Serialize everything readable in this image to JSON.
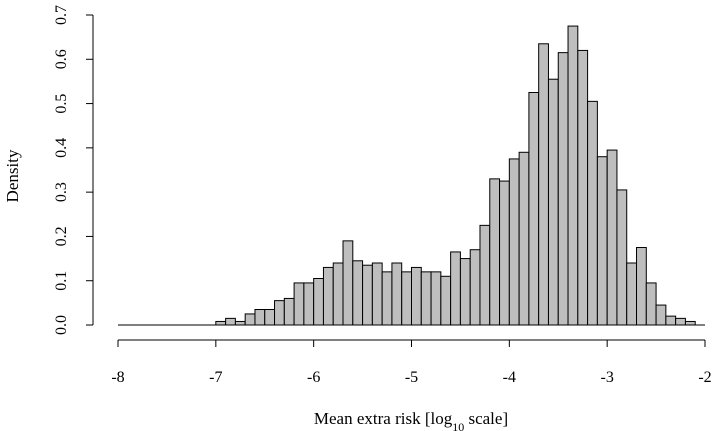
{
  "chart_data": {
    "type": "bar",
    "title": "",
    "ylabel": "Density",
    "xlabel_main": "Mean extra risk [log",
    "xlabel_sub": "10",
    "xlabel_tail": " scale]",
    "xlim": [
      -8,
      -2
    ],
    "ylim": [
      0,
      0.7
    ],
    "x_ticks": [
      -8,
      -7,
      -6,
      -5,
      -4,
      -3,
      -2
    ],
    "x_tick_labels": [
      "-8",
      "-7",
      "-6",
      "-5",
      "-4",
      "-3",
      "-2"
    ],
    "y_ticks": [
      0.0,
      0.1,
      0.2,
      0.3,
      0.4,
      0.5,
      0.6,
      0.7
    ],
    "y_tick_labels": [
      "0.0",
      "0.1",
      "0.2",
      "0.3",
      "0.4",
      "0.5",
      "0.6",
      "0.7"
    ],
    "bin_start": -8.0,
    "bin_width": 0.1,
    "values": [
      0,
      0,
      0,
      0,
      0,
      0,
      0,
      0,
      0,
      0,
      0.008,
      0.015,
      0.008,
      0.025,
      0.035,
      0.035,
      0.055,
      0.06,
      0.095,
      0.095,
      0.105,
      0.13,
      0.14,
      0.19,
      0.145,
      0.135,
      0.14,
      0.12,
      0.14,
      0.12,
      0.13,
      0.12,
      0.12,
      0.11,
      0.165,
      0.15,
      0.17,
      0.225,
      0.33,
      0.325,
      0.375,
      0.39,
      0.525,
      0.635,
      0.555,
      0.615,
      0.675,
      0.62,
      0.505,
      0.38,
      0.395,
      0.305,
      0.14,
      0.175,
      0.095,
      0.045,
      0.02,
      0.015,
      0.008,
      0,
      0,
      0,
      0,
      0,
      0,
      0,
      0,
      0,
      0,
      0
    ],
    "bar_color": "#bebebe",
    "edge_color": "#000000",
    "grid": false
  }
}
